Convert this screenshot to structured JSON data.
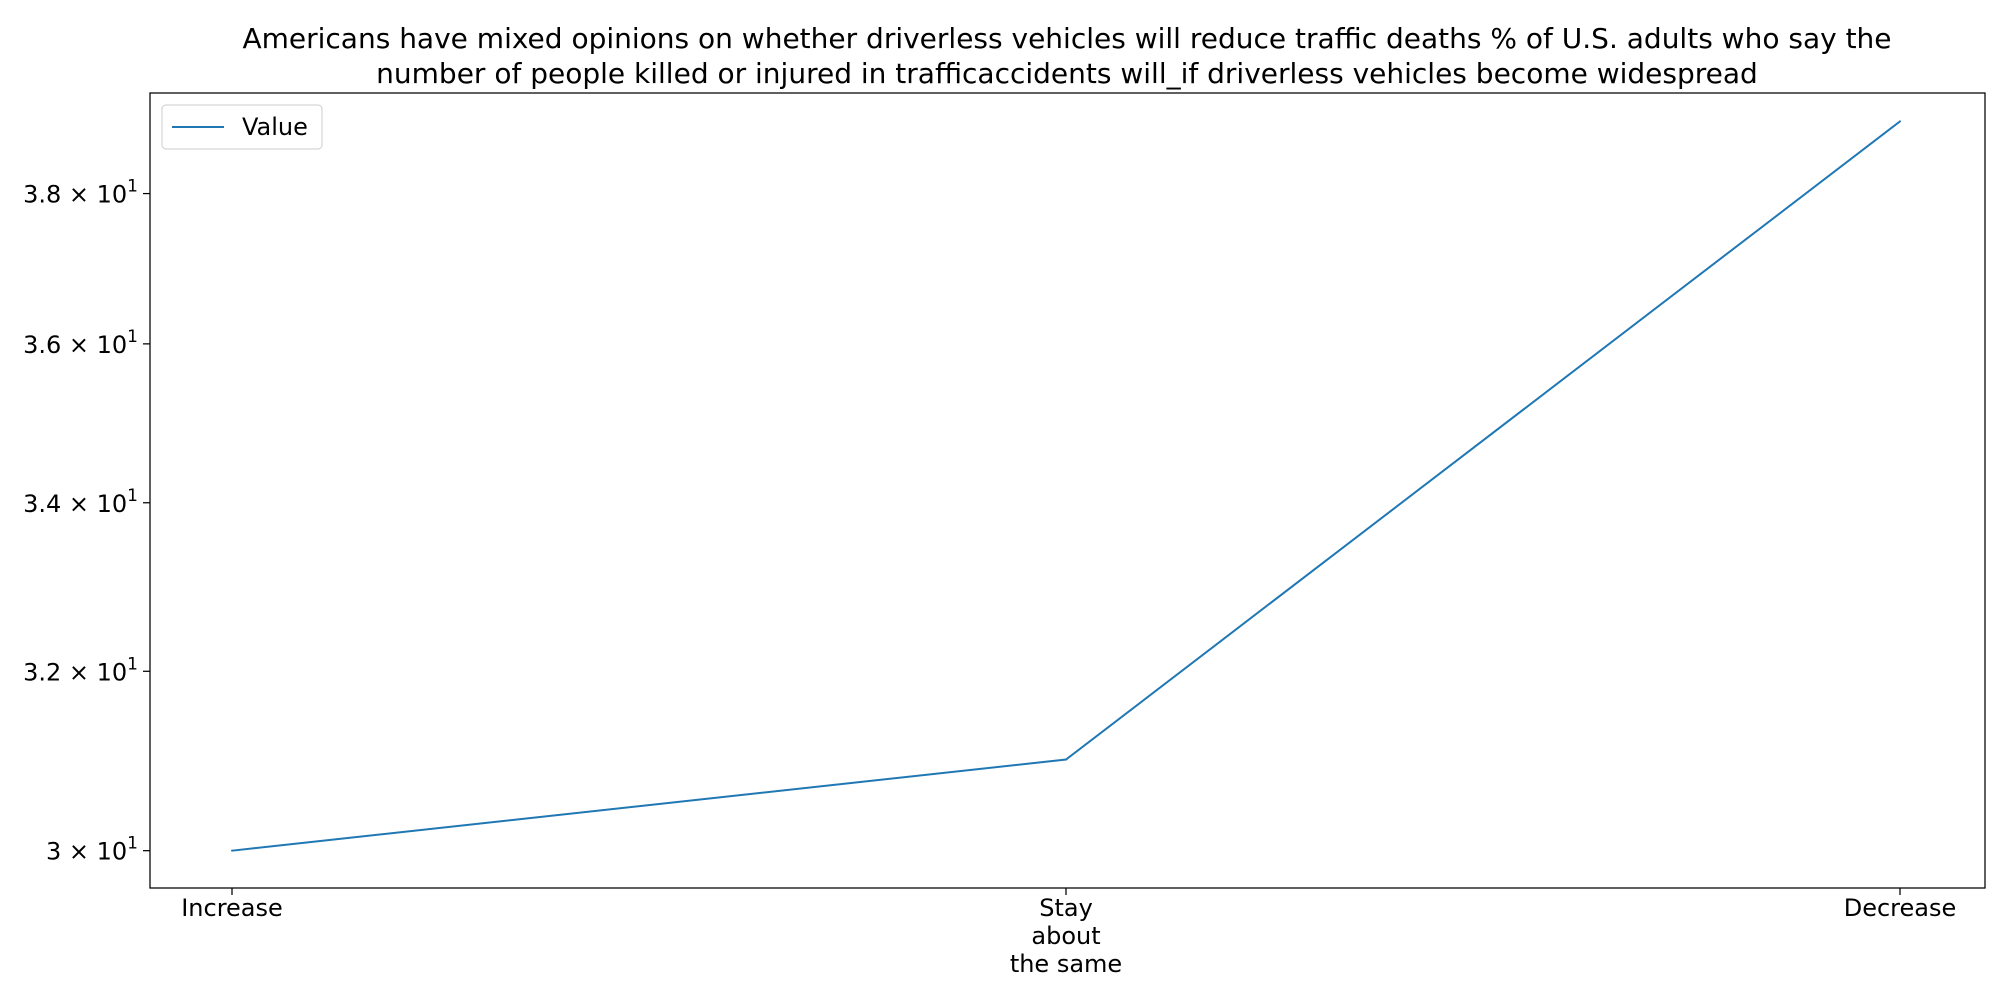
{
  "chart_data": {
    "type": "line",
    "title_lines": [
      "Americans have mixed opinions on whether driverless vehicles will reduce traffic deaths % of U.S. adults who say the",
      "number of people killed or injured in trafficaccidents will_if driverless vehicles become widespread"
    ],
    "categories": [
      [
        "Increase"
      ],
      [
        "Stay",
        "about",
        "the same"
      ],
      [
        "Decrease"
      ]
    ],
    "series": [
      {
        "name": "Value",
        "values": [
          30,
          31,
          39
        ],
        "color": "#1f77b4"
      }
    ],
    "y_scale": "log",
    "ylim": [
      29.6,
      39.4
    ],
    "y_ticks": [
      {
        "value": 30,
        "mantissa": "3",
        "base": "10",
        "exp": "1"
      },
      {
        "value": 32,
        "mantissa": "3.2",
        "base": "10",
        "exp": "1"
      },
      {
        "value": 34,
        "mantissa": "3.4",
        "base": "10",
        "exp": "1"
      },
      {
        "value": 36,
        "mantissa": "3.6",
        "base": "10",
        "exp": "1"
      },
      {
        "value": 38,
        "mantissa": "3.8",
        "base": "10",
        "exp": "1"
      }
    ],
    "legend_position": "top-left",
    "grid": false,
    "xlabel": "",
    "ylabel": ""
  }
}
